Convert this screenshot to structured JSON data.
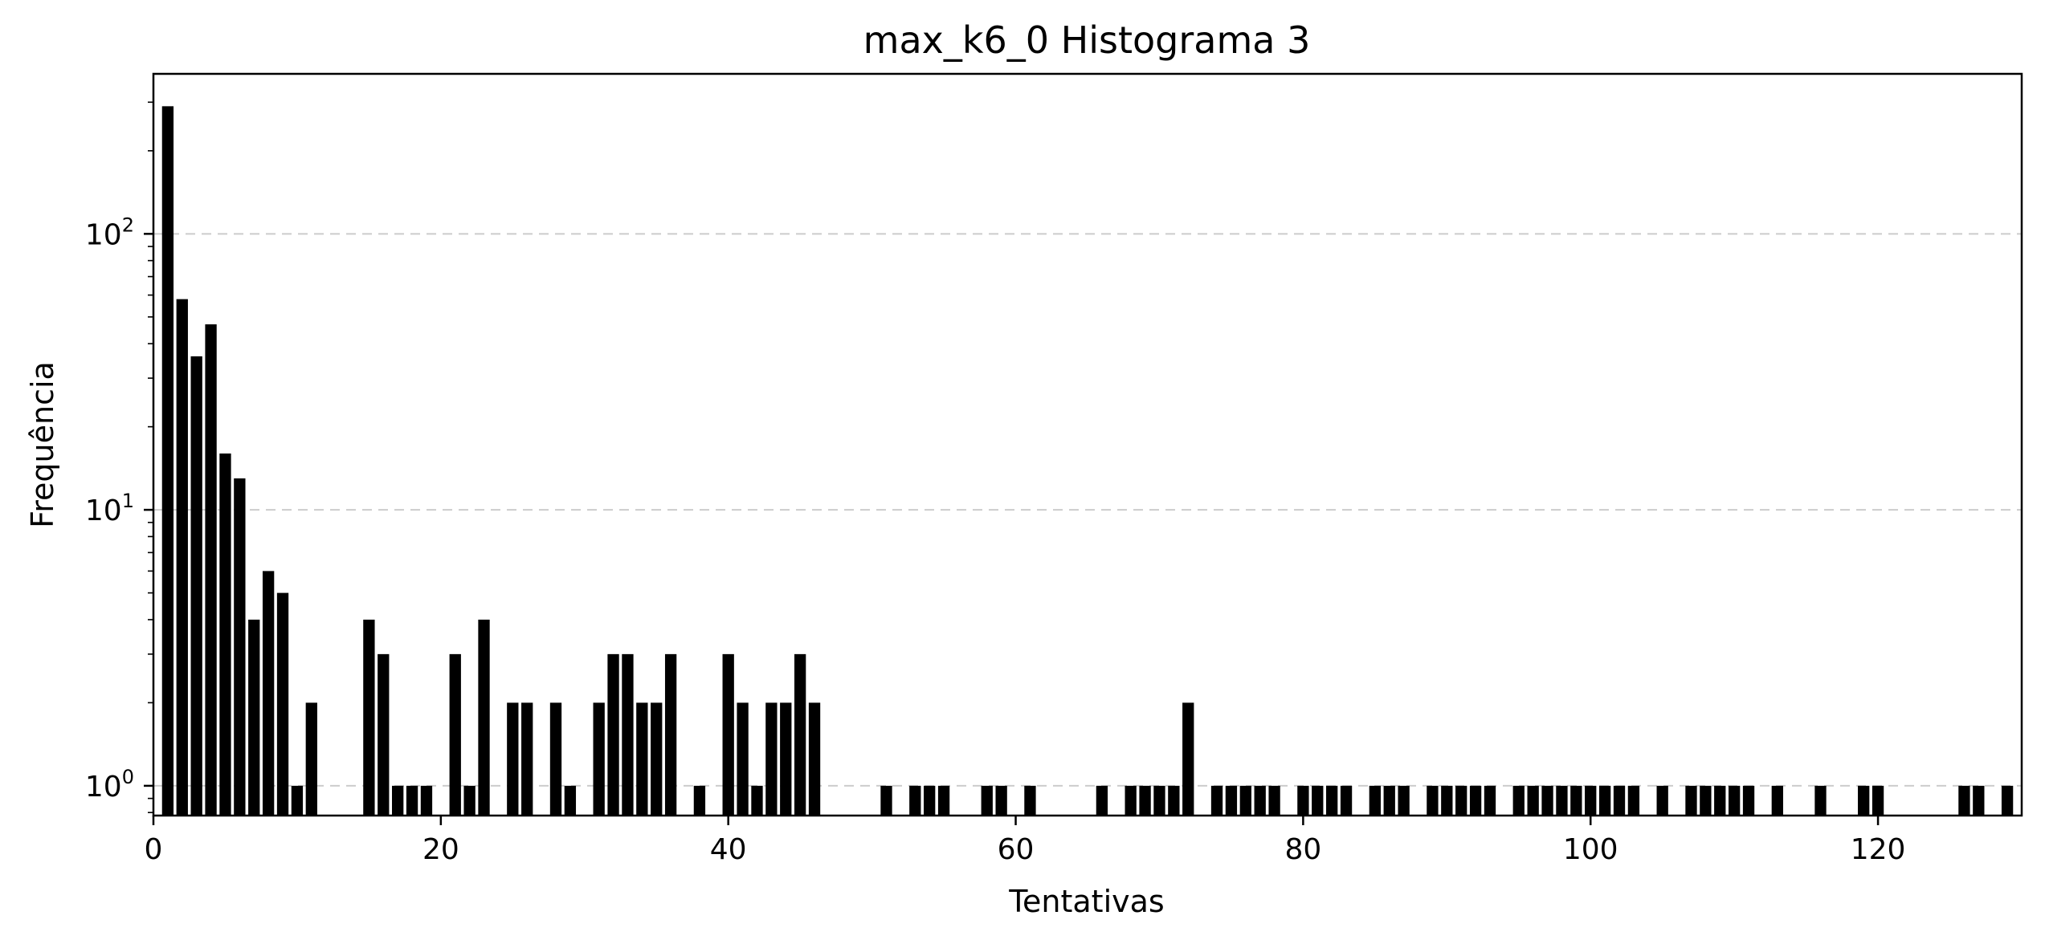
{
  "chart_data": {
    "type": "bar",
    "title": "max_k6_0 Histograma 3",
    "xlabel": "Tentativas",
    "ylabel": "Frequência",
    "x_scale": "linear",
    "y_scale": "log",
    "xlim": [
      0,
      130
    ],
    "ylim": [
      0.78,
      380
    ],
    "x_ticks": [
      0,
      20,
      40,
      60,
      80,
      100,
      120
    ],
    "y_ticks": [
      {
        "value": 1,
        "base": "10",
        "exp": "0"
      },
      {
        "value": 10,
        "base": "10",
        "exp": "1"
      },
      {
        "value": 100,
        "base": "10",
        "exp": "2"
      }
    ],
    "grid": "y-major dashed",
    "legend": "none",
    "bar_color": "#000000",
    "x": [
      1,
      2,
      3,
      4,
      5,
      6,
      7,
      8,
      9,
      10,
      11,
      15,
      16,
      17,
      18,
      19,
      21,
      22,
      23,
      25,
      26,
      28,
      29,
      31,
      32,
      33,
      34,
      35,
      36,
      38,
      40,
      41,
      42,
      43,
      44,
      45,
      46,
      51,
      53,
      54,
      55,
      58,
      59,
      61,
      66,
      68,
      69,
      70,
      71,
      72,
      74,
      75,
      76,
      77,
      78,
      80,
      81,
      82,
      83,
      85,
      86,
      87,
      89,
      90,
      91,
      92,
      93,
      95,
      96,
      97,
      98,
      99,
      100,
      101,
      102,
      103,
      105,
      107,
      108,
      109,
      110,
      111,
      113,
      116,
      119,
      120,
      126,
      127,
      129
    ],
    "values": [
      290,
      58,
      36,
      47,
      16,
      13,
      4,
      6,
      5,
      1,
      2,
      4,
      3,
      1,
      1,
      1,
      3,
      1,
      4,
      2,
      2,
      2,
      1,
      2,
      3,
      3,
      2,
      2,
      3,
      1,
      3,
      2,
      1,
      2,
      2,
      3,
      2,
      1,
      1,
      1,
      1,
      1,
      1,
      1,
      1,
      1,
      1,
      1,
      1,
      2,
      1,
      1,
      1,
      1,
      1,
      1,
      1,
      1,
      1,
      1,
      1,
      1,
      1,
      1,
      1,
      1,
      1,
      1,
      1,
      1,
      1,
      1,
      1,
      1,
      1,
      1,
      1,
      1,
      1,
      1,
      1,
      1,
      1,
      1,
      1,
      1,
      1,
      1,
      1
    ]
  }
}
